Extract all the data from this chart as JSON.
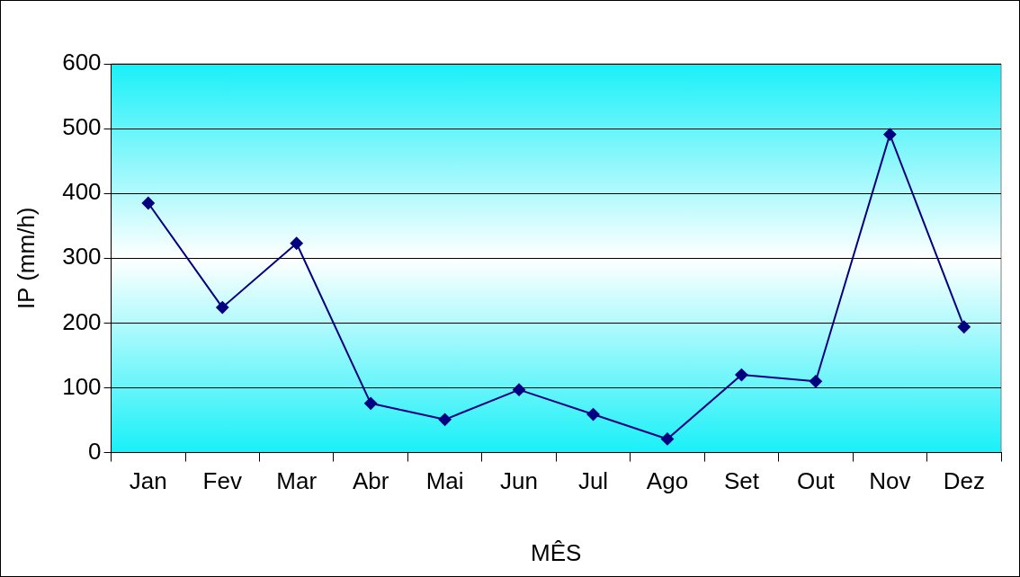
{
  "chart_data": {
    "type": "line",
    "categories": [
      "Jan",
      "Fev",
      "Mar",
      "Abr",
      "Mai",
      "Jun",
      "Jul",
      "Ago",
      "Set",
      "Out",
      "Nov",
      "Dez"
    ],
    "series": [
      {
        "color": "#000080",
        "values": [
          385,
          224,
          323,
          76,
          51,
          97,
          59,
          21,
          120,
          110,
          491,
          194
        ]
      }
    ],
    "xlabel": "MÊS",
    "ylabel": "IP (mm/h)",
    "ylim": [
      0,
      600
    ],
    "yticks": [
      0,
      100,
      200,
      300,
      400,
      500,
      600
    ],
    "grid": "y",
    "legend": false,
    "marker": "diamond",
    "line_style": "solid"
  }
}
